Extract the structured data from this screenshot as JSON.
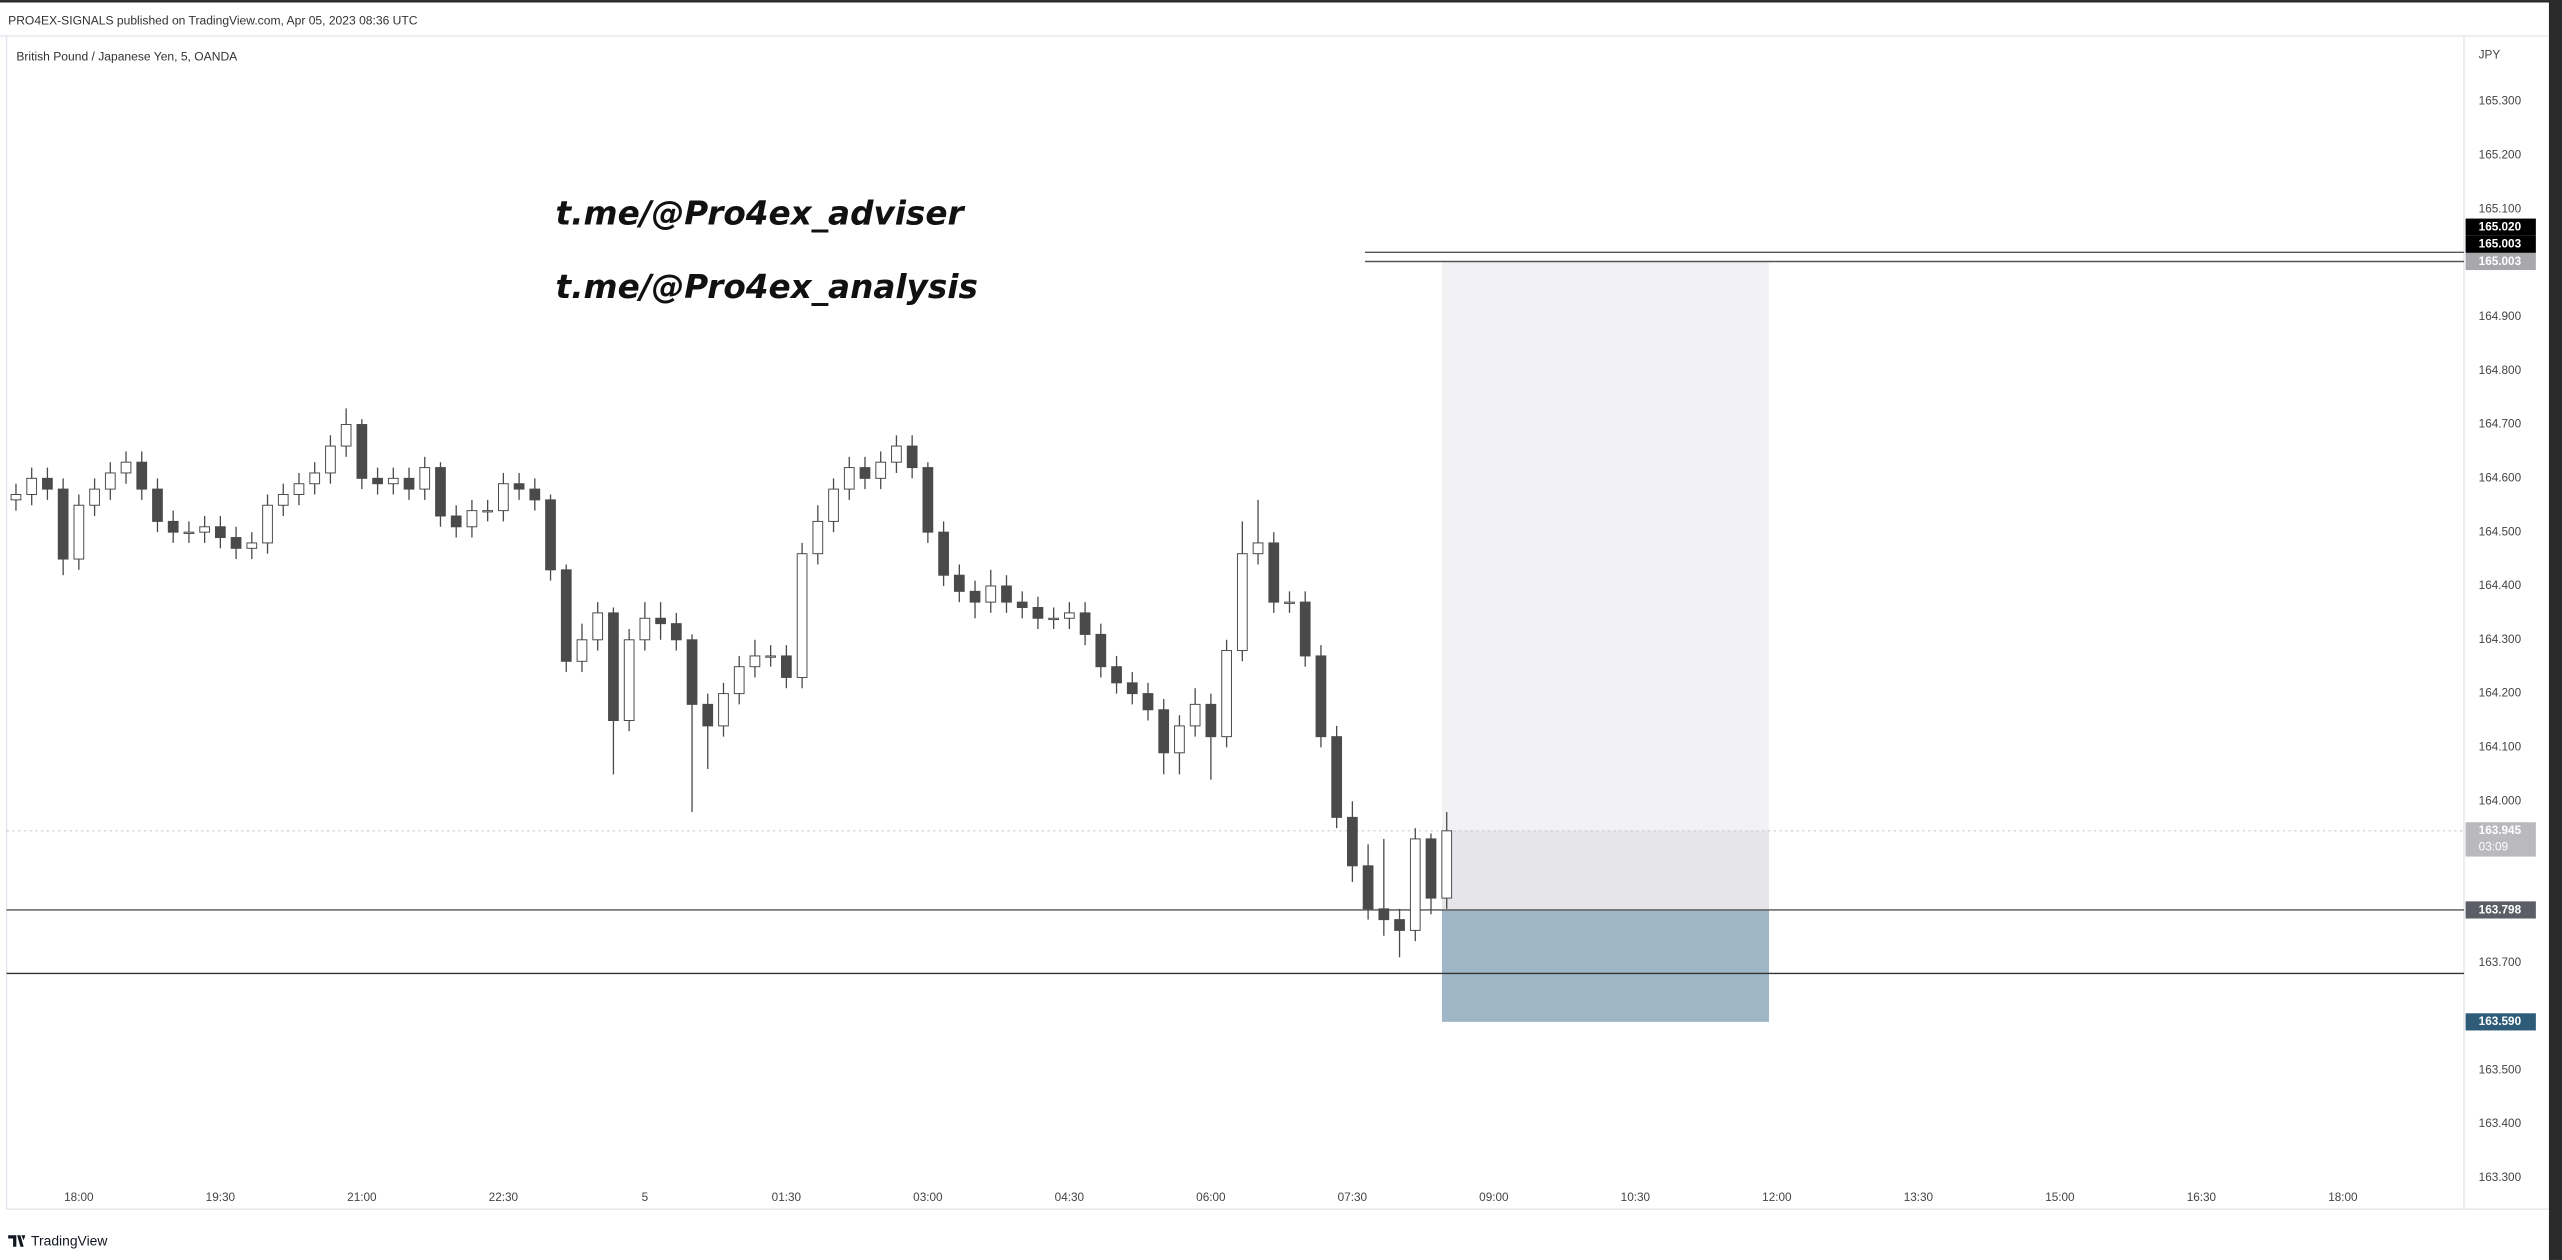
{
  "header": {
    "publisher": "PRO4EX-SIGNALS published on TradingView.com, Apr 05, 2023 08:36 UTC",
    "symbol": "British Pound / Japanese Yen, 5, OANDA",
    "footer": "TradingView"
  },
  "chart_data": {
    "type": "candlestick",
    "currency": "JPY",
    "annotations": [
      "t.me/@Pro4ex_adviser",
      "t.me/@Pro4ex_analysis"
    ],
    "x": [
      1040,
      1050,
      1060,
      1070,
      1080,
      1090,
      1100,
      1110,
      1120,
      1130,
      1140,
      1150,
      1160,
      1170,
      1180,
      1190,
      1200,
      1210,
      1220,
      1230,
      1240,
      1250,
      1260,
      1270,
      1280,
      1290,
      1300,
      1310,
      1320,
      1330,
      1340,
      1350,
      1360,
      1370,
      1380,
      1390,
      1400,
      1410,
      1420,
      1430,
      1440,
      1450,
      1460,
      1470,
      1480,
      1490,
      1500,
      1510,
      1520,
      1530,
      1540,
      1550,
      1560,
      1570,
      1580,
      1590,
      1600,
      1610,
      1620,
      1630,
      1640,
      1650,
      1660,
      1670,
      1680,
      1690,
      1700,
      1710,
      1720,
      1730,
      1740,
      1750,
      1760,
      1770,
      1780,
      1790,
      1800,
      1810,
      1820,
      1830,
      1840,
      1850,
      1860,
      1870,
      1880,
      1890,
      1900,
      1910,
      1920,
      1930,
      1940,
      1950
    ],
    "open": [
      164.56,
      164.57,
      164.6,
      164.58,
      164.45,
      164.55,
      164.58,
      164.61,
      164.63,
      164.58,
      164.52,
      164.5,
      164.5,
      164.51,
      164.49,
      164.47,
      164.48,
      164.55,
      164.57,
      164.59,
      164.61,
      164.66,
      164.7,
      164.6,
      164.59,
      164.6,
      164.58,
      164.62,
      164.53,
      164.51,
      164.54,
      164.54,
      164.59,
      164.58,
      164.56,
      164.43,
      164.26,
      164.3,
      164.35,
      164.15,
      164.3,
      164.34,
      164.33,
      164.3,
      164.18,
      164.14,
      164.2,
      164.25,
      164.27,
      164.27,
      164.23,
      164.46,
      164.52,
      164.58,
      164.62,
      164.6,
      164.63,
      164.66,
      164.62,
      164.5,
      164.42,
      164.39,
      164.37,
      164.4,
      164.37,
      164.36,
      164.34,
      164.34,
      164.35,
      164.31,
      164.25,
      164.22,
      164.2,
      164.17,
      164.09,
      164.14,
      164.18,
      164.12,
      164.28,
      164.46,
      164.48,
      164.37,
      164.37,
      164.27,
      164.12,
      163.97,
      163.88,
      163.8,
      163.78,
      163.76,
      163.93,
      163.82
    ],
    "close": [
      164.57,
      164.6,
      164.58,
      164.45,
      164.55,
      164.58,
      164.61,
      164.63,
      164.58,
      164.52,
      164.5,
      164.5,
      164.51,
      164.49,
      164.47,
      164.48,
      164.55,
      164.57,
      164.59,
      164.61,
      164.66,
      164.7,
      164.6,
      164.59,
      164.6,
      164.58,
      164.62,
      164.53,
      164.51,
      164.54,
      164.54,
      164.59,
      164.58,
      164.56,
      164.43,
      164.26,
      164.3,
      164.35,
      164.15,
      164.3,
      164.34,
      164.33,
      164.3,
      164.18,
      164.14,
      164.2,
      164.25,
      164.27,
      164.27,
      164.23,
      164.46,
      164.52,
      164.58,
      164.62,
      164.6,
      164.63,
      164.66,
      164.62,
      164.5,
      164.42,
      164.39,
      164.37,
      164.4,
      164.37,
      164.36,
      164.34,
      164.34,
      164.35,
      164.31,
      164.25,
      164.22,
      164.2,
      164.17,
      164.09,
      164.14,
      164.18,
      164.12,
      164.28,
      164.46,
      164.48,
      164.37,
      164.37,
      164.27,
      164.12,
      163.97,
      163.88,
      163.8,
      163.78,
      163.76,
      163.93,
      163.82,
      163.945
    ],
    "high": [
      164.59,
      164.62,
      164.62,
      164.6,
      164.57,
      164.6,
      164.63,
      164.65,
      164.65,
      164.6,
      164.54,
      164.52,
      164.53,
      164.53,
      164.51,
      164.5,
      164.57,
      164.59,
      164.61,
      164.63,
      164.68,
      164.73,
      164.71,
      164.62,
      164.62,
      164.62,
      164.64,
      164.63,
      164.55,
      164.56,
      164.56,
      164.61,
      164.61,
      164.6,
      164.57,
      164.44,
      164.33,
      164.37,
      164.36,
      164.32,
      164.37,
      164.37,
      164.35,
      164.31,
      164.2,
      164.22,
      164.27,
      164.3,
      164.29,
      164.29,
      164.48,
      164.55,
      164.6,
      164.64,
      164.64,
      164.65,
      164.68,
      164.68,
      164.63,
      164.52,
      164.44,
      164.41,
      164.43,
      164.42,
      164.39,
      164.38,
      164.36,
      164.37,
      164.37,
      164.33,
      164.27,
      164.24,
      164.22,
      164.19,
      164.16,
      164.21,
      164.2,
      164.3,
      164.52,
      164.56,
      164.5,
      164.39,
      164.39,
      164.29,
      164.14,
      164.0,
      163.92,
      163.93,
      163.8,
      163.95,
      163.94,
      163.98
    ],
    "low": [
      164.54,
      164.55,
      164.56,
      164.42,
      164.43,
      164.53,
      164.56,
      164.59,
      164.56,
      164.5,
      164.48,
      164.48,
      164.48,
      164.47,
      164.45,
      164.45,
      164.46,
      164.53,
      164.55,
      164.57,
      164.59,
      164.64,
      164.58,
      164.57,
      164.57,
      164.56,
      164.56,
      164.51,
      164.49,
      164.49,
      164.52,
      164.52,
      164.56,
      164.54,
      164.41,
      164.24,
      164.24,
      164.28,
      164.05,
      164.13,
      164.28,
      164.3,
      164.28,
      163.98,
      164.06,
      164.12,
      164.18,
      164.23,
      164.25,
      164.21,
      164.21,
      164.44,
      164.5,
      164.56,
      164.58,
      164.58,
      164.61,
      164.6,
      164.48,
      164.4,
      164.37,
      164.34,
      164.35,
      164.35,
      164.34,
      164.32,
      164.32,
      164.32,
      164.29,
      164.23,
      164.2,
      164.18,
      164.15,
      164.05,
      164.05,
      164.12,
      164.04,
      164.1,
      164.26,
      164.44,
      164.35,
      164.35,
      164.25,
      164.1,
      163.95,
      163.85,
      163.78,
      163.75,
      163.71,
      163.74,
      163.79,
      163.8
    ],
    "up_color": "#ffffff",
    "down_color": "#4a4a4a",
    "wick_color": "#4a4a4a",
    "xlim": [
      1034,
      2597
    ],
    "ylim": [
      163.242,
      165.422
    ],
    "xticks": [
      {
        "value": 1080,
        "label": "18:00"
      },
      {
        "value": 1170,
        "label": "19:30"
      },
      {
        "value": 1260,
        "label": "21:00"
      },
      {
        "value": 1350,
        "label": "22:30"
      },
      {
        "value": 1440,
        "label": "5"
      },
      {
        "value": 1530,
        "label": "01:30"
      },
      {
        "value": 1620,
        "label": "03:00"
      },
      {
        "value": 1710,
        "label": "04:30"
      },
      {
        "value": 1800,
        "label": "06:00"
      },
      {
        "value": 1890,
        "label": "07:30"
      },
      {
        "value": 1980,
        "label": "09:00"
      },
      {
        "value": 2070,
        "label": "10:30"
      },
      {
        "value": 2160,
        "label": "12:00"
      },
      {
        "value": 2250,
        "label": "13:30"
      },
      {
        "value": 2340,
        "label": "15:00"
      },
      {
        "value": 2430,
        "label": "16:30"
      },
      {
        "value": 2520,
        "label": "18:00"
      }
    ],
    "yticks": [
      {
        "value": 165.3,
        "label": "165.300"
      },
      {
        "value": 165.2,
        "label": "165.200"
      },
      {
        "value": 165.1,
        "label": "165.100"
      },
      {
        "value": 164.9,
        "label": "164.900"
      },
      {
        "value": 164.8,
        "label": "164.800"
      },
      {
        "value": 164.7,
        "label": "164.700"
      },
      {
        "value": 164.6,
        "label": "164.600"
      },
      {
        "value": 164.5,
        "label": "164.500"
      },
      {
        "value": 164.4,
        "label": "164.400"
      },
      {
        "value": 164.3,
        "label": "164.300"
      },
      {
        "value": 164.2,
        "label": "164.200"
      },
      {
        "value": 164.1,
        "label": "164.100"
      },
      {
        "value": 164.0,
        "label": "164.000"
      },
      {
        "value": 163.7,
        "label": "163.700"
      },
      {
        "value": 163.5,
        "label": "163.500"
      },
      {
        "value": 163.4,
        "label": "163.400"
      },
      {
        "value": 163.3,
        "label": "163.300"
      }
    ],
    "grid": false,
    "hlines": [
      {
        "value": 165.02,
        "x_start": 1898,
        "color": "#555555"
      },
      {
        "value": 165.003,
        "x_start": 1898,
        "color": "#555555"
      },
      {
        "value": 163.798,
        "x_start": 1034,
        "color": "#555555"
      },
      {
        "value": 163.68,
        "x_start": 1034,
        "color": "#333333"
      }
    ],
    "position": {
      "x": [
        1947,
        2155
      ],
      "entry": 163.798,
      "target": 165.003,
      "stop": 163.59,
      "target_color": "#f2f2f4",
      "current_color": "#e6e6ea",
      "stop_color": "#9fb6c6"
    },
    "price_labels": [
      {
        "value": 165.02,
        "label": "165.020",
        "color": "#000000"
      },
      {
        "value": 165.003,
        "label": "165.003",
        "color": "#000000"
      },
      {
        "value": 165.003,
        "label": "165.003",
        "color": "#a8a8ac"
      },
      {
        "value": 163.945,
        "label": "163.945",
        "countdown": "03:09",
        "color": "#b9b9be"
      },
      {
        "value": 163.798,
        "label": "163.798",
        "color": "#5b5e66"
      },
      {
        "value": 163.59,
        "label": "163.590",
        "color": "#2d5b78"
      }
    ]
  }
}
